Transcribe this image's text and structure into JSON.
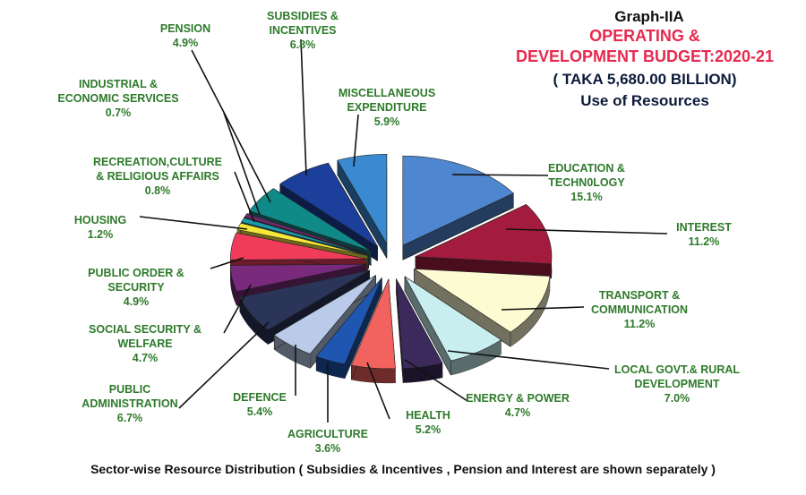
{
  "chart_data": {
    "type": "pie",
    "title": "Graph-IIA",
    "subtitle_lines": [
      "OPERATING &",
      "DEVELOPMENT BUDGET:2020-21"
    ],
    "total_line": "( TAKA 5,680.00 BILLION)",
    "caption": "Use of Resources",
    "footnote": "Sector-wise Resource Distribution ( Subsidies  & Incentives ,  Pension and  Interest are shown separately )",
    "slices": [
      {
        "lines": [
          "EDUCATION &",
          "TECHN0LOGY"
        ],
        "value": 15.1,
        "pct": "15.1%",
        "color": "#4f86d0"
      },
      {
        "lines": [
          "INTEREST"
        ],
        "value": 11.2,
        "pct": "11.2%",
        "color": "#a31c3e"
      },
      {
        "lines": [
          "TRANSPORT &",
          "COMMUNICATION"
        ],
        "value": 11.2,
        "pct": "11.2%",
        "color": "#fdfbd2"
      },
      {
        "lines": [
          "LOCAL GOVT.& RURAL",
          "DEVELOPMENT"
        ],
        "value": 7.0,
        "pct": "7.0%",
        "color": "#c9eef0"
      },
      {
        "lines": [
          "ENERGY & POWER"
        ],
        "value": 4.7,
        "pct": "4.7%",
        "color": "#3d2a5c"
      },
      {
        "lines": [
          "HEALTH"
        ],
        "value": 5.2,
        "pct": "5.2%",
        "color": "#f2625e"
      },
      {
        "lines": [
          "AGRICULTURE"
        ],
        "value": 3.6,
        "pct": "3.6%",
        "color": "#1f56b2"
      },
      {
        "lines": [
          "DEFENCE"
        ],
        "value": 5.4,
        "pct": "5.4%",
        "color": "#b9cbe9"
      },
      {
        "lines": [
          "PUBLIC",
          "ADMINISTRATION"
        ],
        "value": 6.7,
        "pct": "6.7%",
        "color": "#2b3459"
      },
      {
        "lines": [
          "SOCIAL SECURITY &",
          "WELFARE"
        ],
        "value": 4.7,
        "pct": "4.7%",
        "color": "#7a2a7c"
      },
      {
        "lines": [
          "PUBLIC ORDER &",
          "SECURITY"
        ],
        "value": 4.9,
        "pct": "4.9%",
        "color": "#f03c5a"
      },
      {
        "lines": [
          "HOUSING"
        ],
        "value": 1.2,
        "pct": "1.2%",
        "color": "#f5e63a"
      },
      {
        "lines": [
          "RECREATION,CULTURE",
          "& RELIGIOUS AFFAIRS"
        ],
        "value": 0.8,
        "pct": "0.8%",
        "color": "#1a9aaa"
      },
      {
        "lines": [
          "INDUSTRIAL &",
          "ECONOMIC SERVICES"
        ],
        "value": 0.7,
        "pct": "0.7%",
        "color": "#6a2a6a"
      },
      {
        "lines": [
          "PENSION"
        ],
        "value": 4.9,
        "pct": "4.9%",
        "color": "#108a88"
      },
      {
        "lines": [
          "SUBSIDIES &",
          "INCENTIVES"
        ],
        "value": 6.8,
        "pct": "6.8%",
        "color": "#1c3f9c"
      },
      {
        "lines": [
          "MISCELLANEOUS",
          "EXPENDITURE"
        ],
        "value": 5.9,
        "pct": "5.9%",
        "color": "#3a8ad2"
      }
    ]
  }
}
